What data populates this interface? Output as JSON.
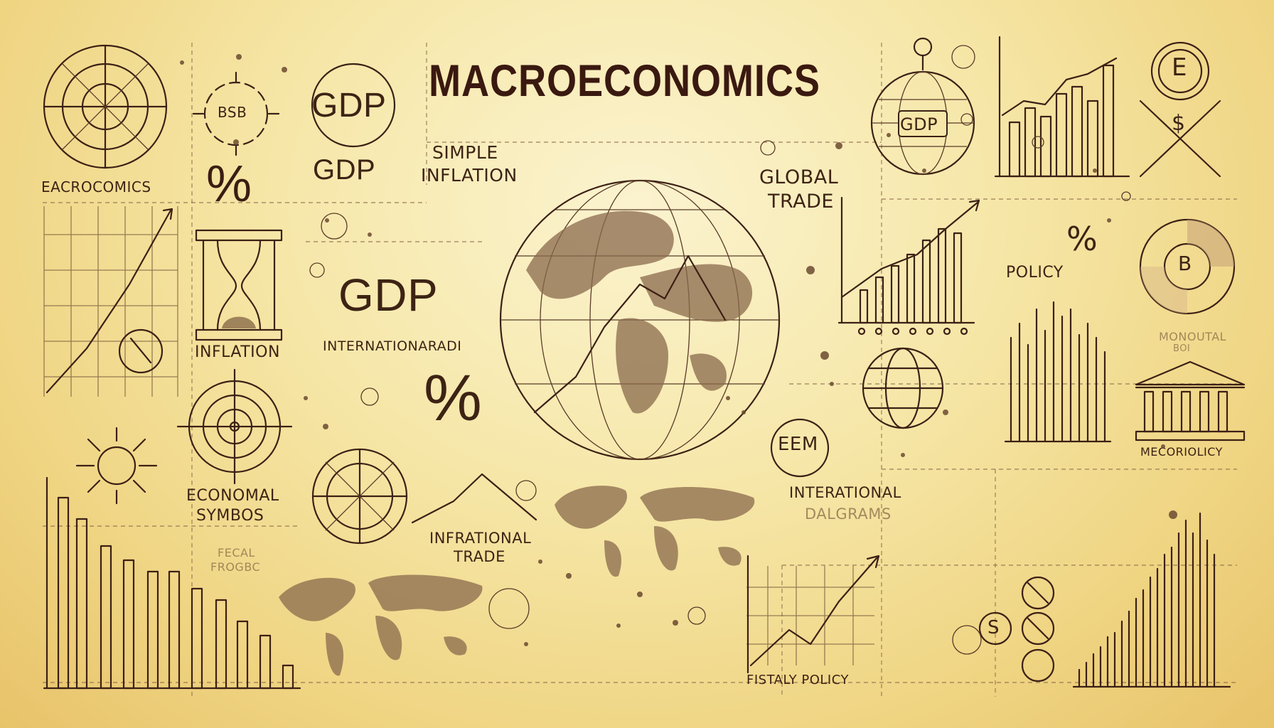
{
  "title": "MACROECONOMICS",
  "labels": {
    "eacro": "EACROCOMICS",
    "gdp_badge": "GDP",
    "gdp_small": "GDP",
    "simple_inflation_1": "SIMPLE",
    "simple_inflation_2": "INFLATION",
    "global_trade_1": "GLOBAL",
    "global_trade_2": "TRADE",
    "gdp_large": "GDP",
    "inflation": "INFLATION",
    "internationarad": "INTERNATIONARADI",
    "percent": "%",
    "economal_1": "ECONOMAL",
    "economal_2": "SYMBOS",
    "fecal_1": "FECAL",
    "fecal_2": "FROGBC",
    "infrational_1": "INFRATIONAL",
    "infrational_2": "TRADE",
    "international_1": "INTERATIONAL",
    "international_2": "DALGRAMS",
    "fistaly_policy": "FISTALY POLICY",
    "policy": "POLICY",
    "monoutal_1": "MONOUTAL",
    "monoutal_2": "BOI",
    "mecoriolicy": "MECORIOLICY",
    "gdp_globe": "GDP",
    "bsb": "BSB",
    "eem": "EEM",
    "b_circle": "B",
    "e_circle": "E",
    "dollar": "$",
    "percent_small": "%",
    "circle_s": "S"
  },
  "icons": [
    "compass-icon",
    "globe-icon",
    "hourglass-icon",
    "percent-icon",
    "bank-icon",
    "pie-chart-icon",
    "bar-chart-icon",
    "line-chart-icon",
    "target-icon",
    "world-map-icon"
  ],
  "colors": {
    "ink": "#3c2015",
    "paper": "#f6e7a8",
    "map": "#8a6a4c"
  }
}
